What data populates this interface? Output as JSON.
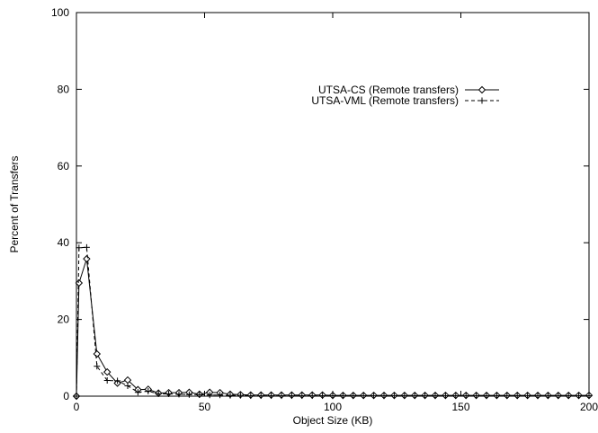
{
  "chart_data": {
    "type": "line",
    "title": "",
    "xlabel": "Object Size (KB)",
    "ylabel": "Percent of Transfers",
    "xlim": [
      0,
      200
    ],
    "ylim": [
      0,
      100
    ],
    "x_ticks": [
      0,
      50,
      100,
      150,
      200
    ],
    "y_ticks": [
      0,
      20,
      40,
      60,
      80,
      100
    ],
    "grid": false,
    "legend_position": "upper-right",
    "series": [
      {
        "name": "UTSA-CS (Remote transfers)",
        "marker": "diamond",
        "line_style": "solid",
        "color": "#000000",
        "x": [
          0,
          1,
          4,
          8,
          12,
          16,
          20,
          24,
          28,
          32,
          36,
          40,
          44,
          48,
          52,
          56,
          60,
          64,
          68,
          72,
          76,
          80,
          84,
          88,
          92,
          96,
          100,
          104,
          108,
          112,
          116,
          120,
          124,
          128,
          132,
          136,
          140,
          144,
          148,
          152,
          156,
          160,
          164,
          168,
          172,
          176,
          180,
          184,
          188,
          192,
          196,
          200
        ],
        "y": [
          0,
          29.5,
          35.8,
          11,
          6.3,
          3.4,
          4.2,
          1.7,
          1.8,
          0.8,
          0.9,
          0.9,
          1.0,
          0.5,
          1.0,
          0.9,
          0.5,
          0.4,
          0.3,
          0.3,
          0.3,
          0.3,
          0.3,
          0.3,
          0.3,
          0.3,
          0.2,
          0.2,
          0.2,
          0.2,
          0.2,
          0.2,
          0.2,
          0.2,
          0.2,
          0.2,
          0.2,
          0.2,
          0.2,
          0.2,
          0.2,
          0.2,
          0.2,
          0.2,
          0.2,
          0.2,
          0.2,
          0.2,
          0.2,
          0.2,
          0.2,
          0.2
        ]
      },
      {
        "name": "UTSA-VML (Remote transfers)",
        "marker": "plus",
        "line_style": "dashed",
        "color": "#000000",
        "x": [
          0,
          1,
          4,
          8,
          12,
          16,
          20,
          24,
          28,
          32,
          36,
          40,
          44,
          48,
          52,
          56,
          60,
          64,
          68,
          72,
          76,
          80,
          84,
          88,
          92,
          96,
          100,
          104,
          108,
          112,
          116,
          120,
          124,
          128,
          132,
          136,
          140,
          144,
          148,
          152,
          156,
          160,
          164,
          168,
          172,
          176,
          180,
          184,
          188,
          192,
          196,
          200
        ],
        "y": [
          0,
          38.7,
          38.8,
          7.8,
          4.1,
          4.0,
          2.7,
          1.0,
          1.3,
          0.6,
          0.6,
          0.5,
          0.4,
          0.4,
          0.3,
          0.3,
          0.2,
          0.2,
          0.1,
          0.1,
          0.1,
          0.1,
          0.1,
          0.1,
          0.1,
          0.1,
          0.1,
          0.1,
          0.1,
          0.1,
          0.1,
          0.1,
          0.1,
          0.1,
          0.1,
          0.1,
          0.1,
          0.1,
          0.1,
          0.1,
          0.1,
          0.1,
          0.1,
          0.1,
          0.1,
          0.1,
          0.1,
          0.1,
          0.1,
          0.1,
          0.1,
          0.1
        ]
      }
    ]
  }
}
